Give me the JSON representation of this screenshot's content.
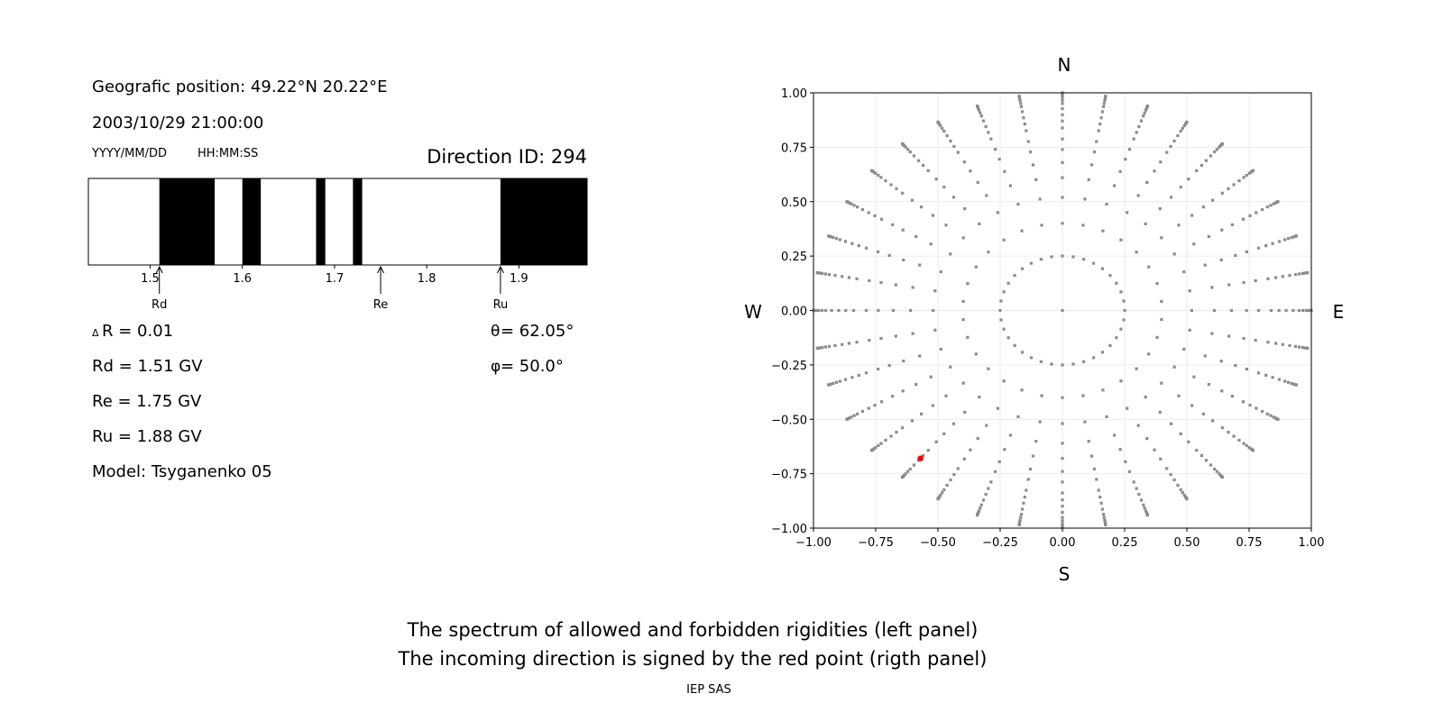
{
  "info": {
    "position": "Geografic position: 49.22°N 20.22°E",
    "datetime": "2003/10/29 21:00:00",
    "date_format": "YYYY/MM/DD",
    "time_format": "HH:MM:SS",
    "direction_id": "Direction ID: 294"
  },
  "values": {
    "delta_r": "R = 0.01",
    "delta_symbol": "Δ",
    "rd": "Rd = 1.51 GV",
    "re": "Re = 1.75 GV",
    "ru": "Ru = 1.88 GV",
    "model": "Model: Tsyganenko 05",
    "theta": " = 62.05°",
    "theta_symbol": "θ",
    "phi": " = 50.0°",
    "phi_symbol": "φ"
  },
  "captions": {
    "line1": "The spectrum of allowed and forbidden rigidities (left panel)",
    "line2": "The incoming direction is signed by the red point (rigth panel)",
    "footer": "IEP SAS"
  },
  "chart_data": [
    {
      "type": "bar",
      "subtype": "rigidity-spectrum",
      "xlim": [
        1.433,
        1.974
      ],
      "xticks": [
        "1.5",
        "1.6",
        "1.7",
        "1.8",
        "1.9"
      ],
      "forbidden_bands": [
        [
          1.51,
          1.57
        ],
        [
          1.6,
          1.62
        ],
        [
          1.68,
          1.69
        ],
        [
          1.72,
          1.73
        ],
        [
          1.88,
          1.974
        ]
      ],
      "allowed_color": "#ffffff",
      "forbidden_color": "#000000",
      "markers": [
        {
          "label": "Rd",
          "value": 1.51
        },
        {
          "label": "Re",
          "value": 1.75
        },
        {
          "label": "Ru",
          "value": 1.88
        }
      ]
    },
    {
      "type": "scatter",
      "xlim": [
        -1,
        1
      ],
      "ylim": [
        -1,
        1
      ],
      "xticks": [
        "−1.00",
        "−0.75",
        "−0.50",
        "−0.25",
        "0.00",
        "0.25",
        "0.50",
        "0.75",
        "1.00"
      ],
      "yticks": [
        "−1.00",
        "−0.75",
        "−0.50",
        "−0.25",
        "0.00",
        "0.25",
        "0.50",
        "0.75",
        "1.00"
      ],
      "grid": true,
      "compass": {
        "north": "N",
        "south": "S",
        "west": "W",
        "east": "E"
      },
      "direction_grid": {
        "zenith_angles_deg": [
          0,
          14.5,
          23.6,
          31.3,
          37.6,
          42.8,
          47.7,
          52,
          57,
          60.5,
          64,
          68,
          72,
          75,
          78.5,
          81.5,
          84.5,
          87,
          90
        ],
        "azimuth_step_deg": 10,
        "projection": "r = sin(zenith)",
        "color": "#8c8c8c"
      },
      "highlight_point": {
        "x": -0.57,
        "y": -0.68,
        "color": "#ff0000"
      }
    }
  ]
}
